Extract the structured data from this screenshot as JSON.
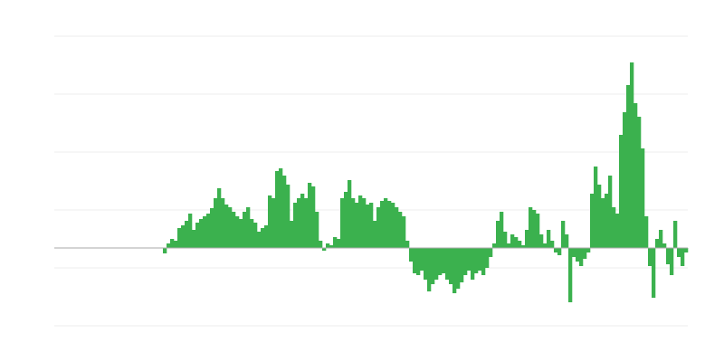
{
  "chart_data": {
    "type": "bar",
    "color": "#3bb14e",
    "grid": true,
    "ylim": [
      -86,
      234
    ],
    "yticks": [
      -86,
      -22,
      42,
      106,
      170,
      234
    ],
    "values": [
      -6,
      5,
      10,
      8,
      22,
      25,
      30,
      38,
      20,
      28,
      32,
      35,
      38,
      44,
      55,
      66,
      55,
      48,
      45,
      40,
      35,
      32,
      40,
      45,
      32,
      28,
      18,
      22,
      25,
      58,
      55,
      85,
      88,
      80,
      70,
      30,
      50,
      55,
      60,
      55,
      72,
      68,
      40,
      8,
      -3,
      5,
      3,
      12,
      10,
      55,
      62,
      75,
      55,
      50,
      58,
      55,
      48,
      50,
      30,
      45,
      52,
      55,
      52,
      50,
      45,
      40,
      35,
      8,
      -15,
      -28,
      -30,
      -25,
      -35,
      -48,
      -40,
      -35,
      -30,
      -28,
      -35,
      -40,
      -50,
      -45,
      -38,
      -30,
      -25,
      -35,
      -28,
      -25,
      -30,
      -22,
      -10,
      5,
      30,
      40,
      18,
      5,
      15,
      12,
      8,
      3,
      20,
      45,
      42,
      38,
      15,
      5,
      20,
      8,
      -5,
      -8,
      30,
      15,
      -60,
      -10,
      -15,
      -20,
      -12,
      -5,
      60,
      90,
      70,
      55,
      60,
      80,
      45,
      38,
      125,
      150,
      180,
      205,
      160,
      145,
      110,
      35,
      -20,
      -55,
      10,
      20,
      5,
      -18,
      -30,
      30,
      -10,
      -20,
      -5
    ]
  }
}
